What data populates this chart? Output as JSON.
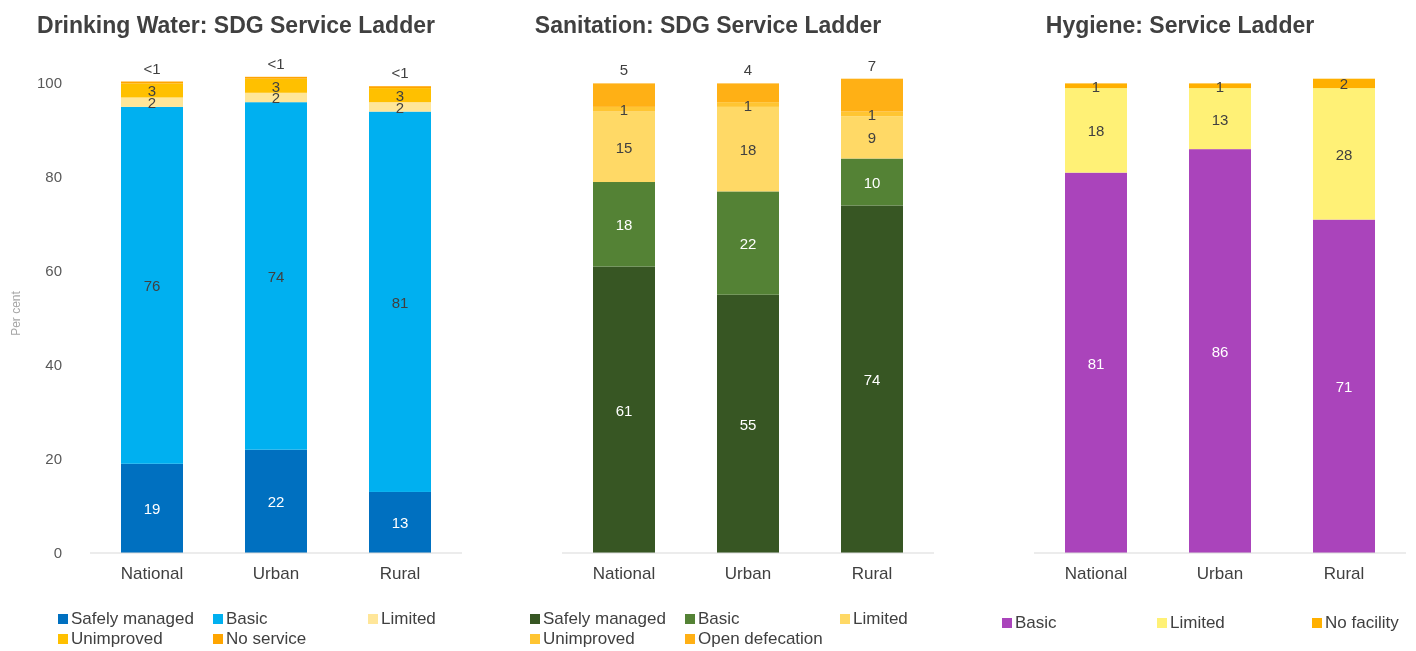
{
  "chart_data": [
    {
      "type": "bar",
      "stacked": true,
      "title": "Drinking Water: SDG Service Ladder",
      "ylabel": "Per cent",
      "categories": [
        "National",
        "Urban",
        "Rural"
      ],
      "ylim": [
        0,
        102
      ],
      "yticks": [
        0,
        20,
        40,
        60,
        80,
        100
      ],
      "grid": false,
      "legend": "bottom",
      "data_labels": true,
      "series": [
        {
          "name": "Safely managed",
          "color": "#0070c0",
          "values": [
            19,
            22,
            13
          ]
        },
        {
          "name": "Basic",
          "color": "#00b0f0",
          "values": [
            76,
            74,
            81
          ]
        },
        {
          "name": "Limited",
          "color": "#ffe699",
          "values": [
            2,
            2,
            2
          ]
        },
        {
          "name": "Unimproved",
          "color": "#ffc000",
          "values": [
            3,
            3,
            3
          ]
        },
        {
          "name": "No service",
          "color": "#ffa500",
          "values": [
            0.4,
            0.4,
            0.4
          ],
          "value_labels": [
            "<1",
            "<1",
            "<1"
          ]
        }
      ]
    },
    {
      "type": "bar",
      "stacked": true,
      "title": "Sanitation: SDG Service Ladder",
      "categories": [
        "National",
        "Urban",
        "Rural"
      ],
      "ylim": [
        0,
        102
      ],
      "tick_labels": "x",
      "grid": false,
      "legend": "bottom",
      "data_labels": true,
      "series": [
        {
          "name": "Safely managed",
          "color": "#375623",
          "values": [
            61,
            55,
            74
          ]
        },
        {
          "name": "Basic",
          "color": "#548235",
          "values": [
            18,
            22,
            10
          ]
        },
        {
          "name": "Limited",
          "color": "#ffd966",
          "values": [
            15,
            18,
            9
          ]
        },
        {
          "name": "Unimproved",
          "color": "#ffc532",
          "values": [
            1,
            1,
            1
          ]
        },
        {
          "name": "Open defecation",
          "color": "#ffb015",
          "values": [
            5,
            4,
            7
          ]
        }
      ]
    },
    {
      "type": "bar",
      "stacked": true,
      "title": "Hygiene: Service Ladder",
      "categories": [
        "National",
        "Urban",
        "Rural"
      ],
      "ylim": [
        0,
        102
      ],
      "tick_labels": "x",
      "grid": false,
      "legend": "bottom",
      "data_labels": true,
      "series": [
        {
          "name": "Basic",
          "color": "#aa44bb",
          "values": [
            81,
            86,
            71
          ]
        },
        {
          "name": "Limited",
          "color": "#fff176",
          "values": [
            18,
            13,
            28
          ]
        },
        {
          "name": "No facility",
          "color": "#ffb000",
          "values": [
            1,
            1,
            2
          ]
        }
      ]
    }
  ]
}
